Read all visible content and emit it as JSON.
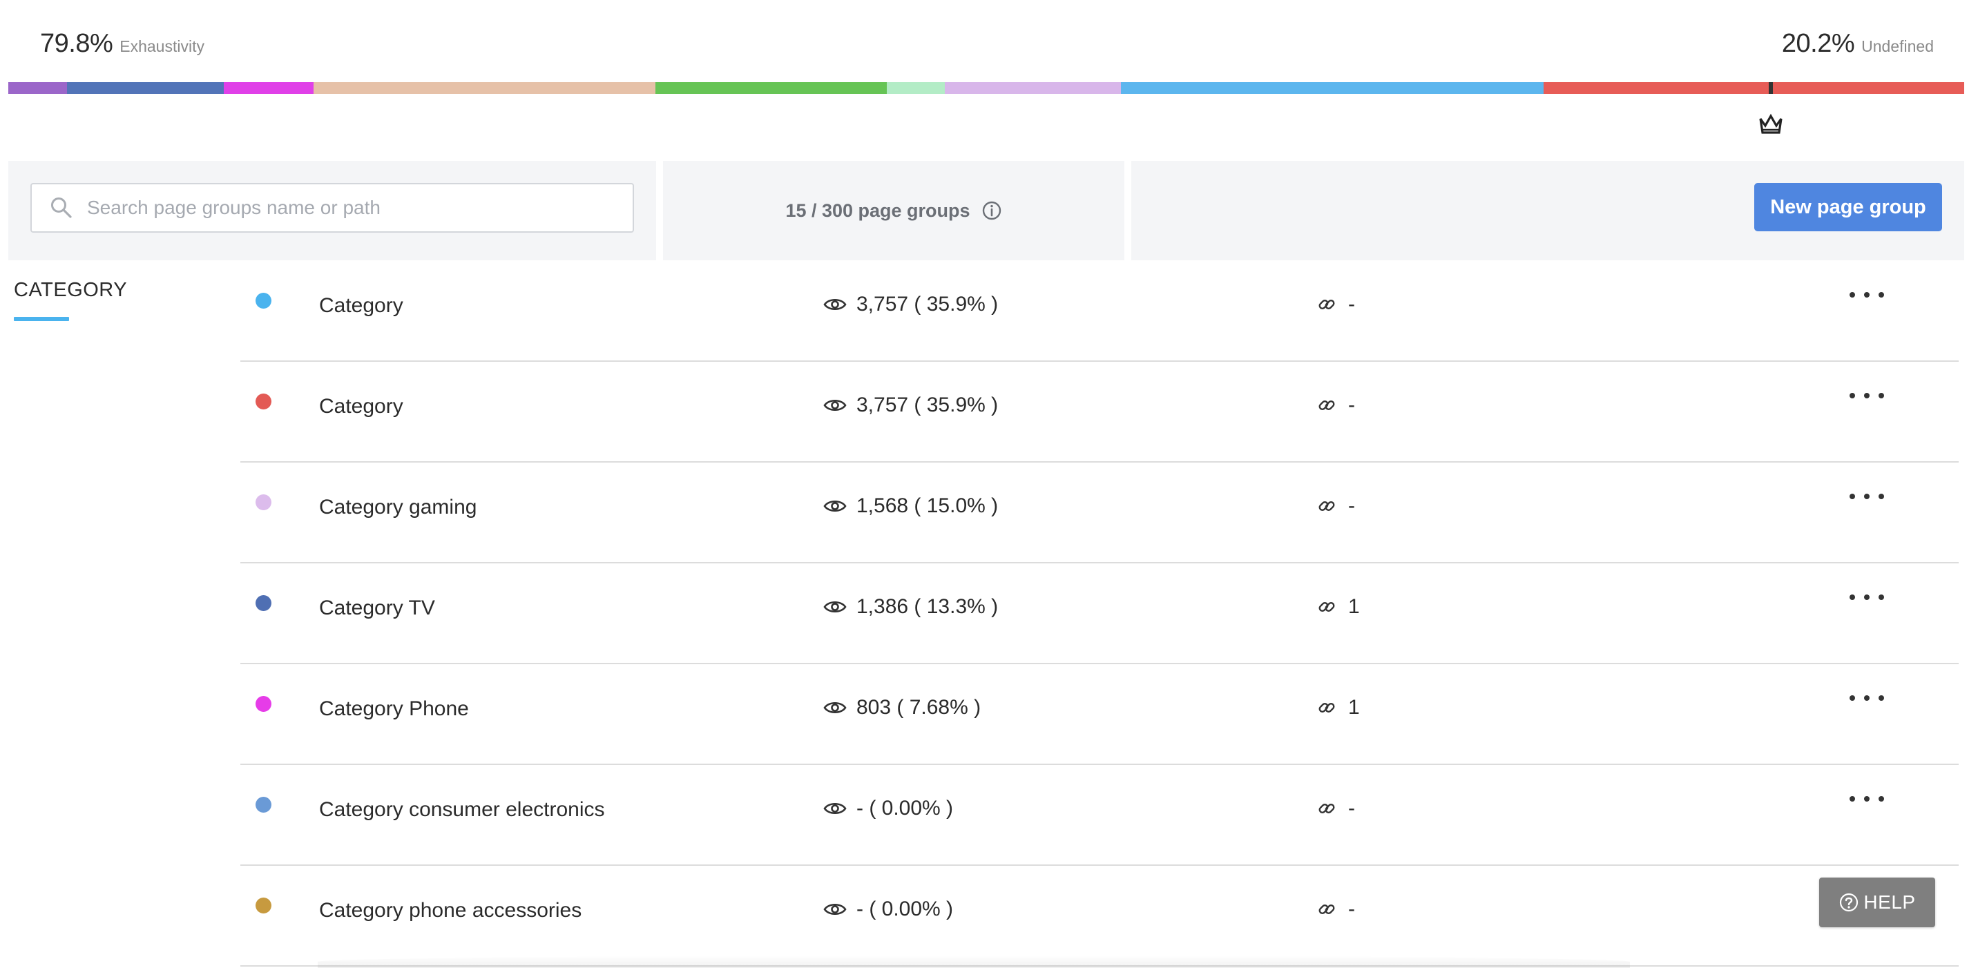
{
  "summary": {
    "exhaustivity_pct": "79.8%",
    "exhaustivity_label": "Exhaustivity",
    "undefined_pct": "20.2%",
    "undefined_label": "Undefined"
  },
  "distribution": [
    {
      "color": "#9b66c9",
      "share": 3.0
    },
    {
      "color": "#5274b8",
      "share": 8.0
    },
    {
      "color": "#e040e8",
      "share": 4.6
    },
    {
      "color": "#e6c1a8",
      "share": 17.5
    },
    {
      "color": "#66c455",
      "share": 11.8
    },
    {
      "color": "#b3ecc6",
      "share": 3.0
    },
    {
      "color": "#d8b6ea",
      "share": 9.0
    },
    {
      "color": "#5cb6ee",
      "share": 21.6
    },
    {
      "color": "#e75c57",
      "share": 21.5
    }
  ],
  "toolbar": {
    "search_placeholder": "Search page groups name or path",
    "count_text": "15 / 300 page groups",
    "new_button_label": "New page group"
  },
  "category_tab": "CATEGORY",
  "rows": [
    {
      "color": "#4ab3ee",
      "name": "Category",
      "views": "3,757 ( 35.9% )",
      "links": "-"
    },
    {
      "color": "#e35a55",
      "name": "Category",
      "views": "3,757 ( 35.9% )",
      "links": "-"
    },
    {
      "color": "#dcbcec",
      "name": "Category gaming",
      "views": "1,568 ( 15.0% )",
      "links": "-"
    },
    {
      "color": "#4f6fb3",
      "name": "Category TV",
      "views": "1,386 ( 13.3% )",
      "links": "1"
    },
    {
      "color": "#e63ce8",
      "name": "Category Phone",
      "views": "803 ( 7.68% )",
      "links": "1"
    },
    {
      "color": "#6a9ad6",
      "name": "Category consumer electronics",
      "views": "- ( 0.00% )",
      "links": "-"
    },
    {
      "color": "#c79a3f",
      "name": "Category phone accessories",
      "views": "- ( 0.00% )",
      "links": "-"
    }
  ],
  "help_label": "HELP"
}
